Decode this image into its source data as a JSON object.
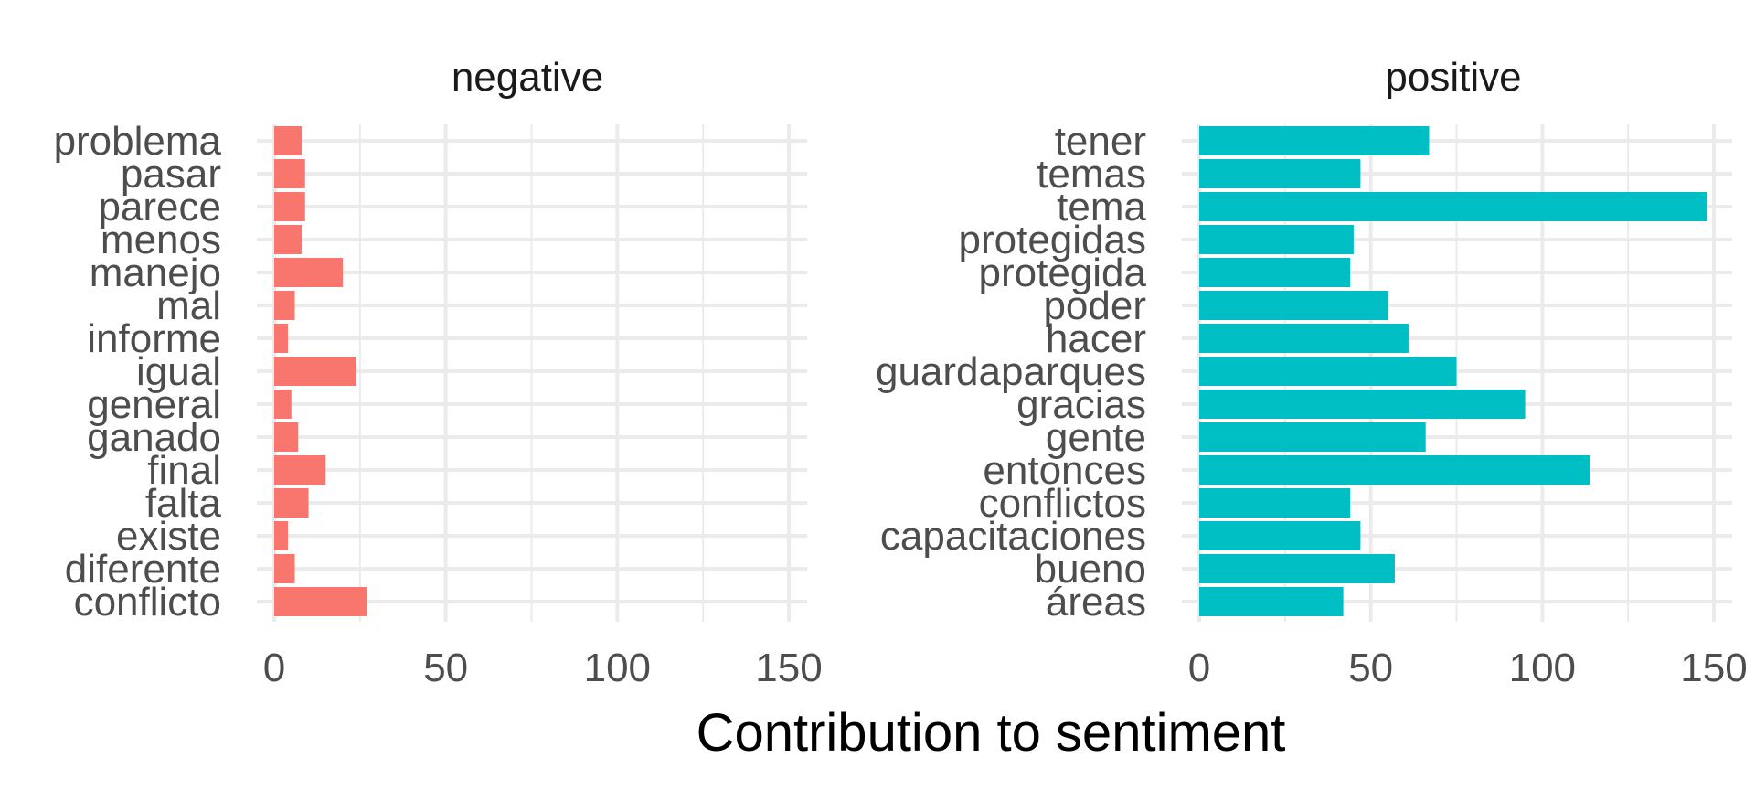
{
  "chart_data": {
    "type": "bar",
    "orientation": "horizontal",
    "xlabel": "Contribution to sentiment",
    "ylabel": "",
    "xlim": [
      0,
      150
    ],
    "xticks": [
      0,
      50,
      100,
      150
    ],
    "grid": true,
    "legend": "none",
    "panels": [
      {
        "title": "negative",
        "color": "#F8766D",
        "categories": [
          "problema",
          "pasar",
          "parece",
          "menos",
          "manejo",
          "mal",
          "informe",
          "igual",
          "general",
          "ganado",
          "final",
          "falta",
          "existe",
          "diferente",
          "conflicto"
        ],
        "values": [
          8,
          9,
          9,
          8,
          20,
          6,
          4,
          24,
          5,
          7,
          15,
          10,
          4,
          6,
          27
        ]
      },
      {
        "title": "positive",
        "color": "#00BFC4",
        "categories": [
          "tener",
          "temas",
          "tema",
          "protegidas",
          "protegida",
          "poder",
          "hacer",
          "guardaparques",
          "gracias",
          "gente",
          "entonces",
          "conflictos",
          "capacitaciones",
          "bueno",
          "áreas"
        ],
        "values": [
          67,
          47,
          148,
          45,
          44,
          55,
          61,
          75,
          95,
          66,
          114,
          44,
          47,
          57,
          42
        ]
      }
    ]
  }
}
